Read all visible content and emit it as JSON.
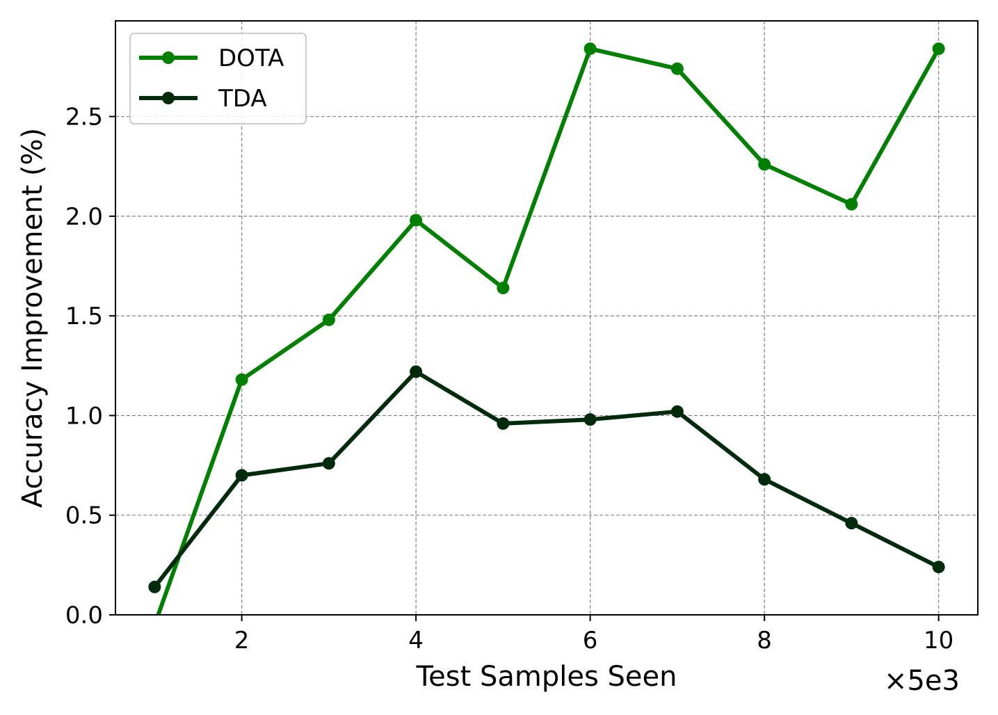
{
  "chart_data": {
    "type": "line",
    "title": "",
    "xlabel": "Test Samples Seen",
    "ylabel": "Accuracy Improvement (%)",
    "x_offset_text": "×5e3",
    "x": [
      1,
      2,
      3,
      4,
      5,
      6,
      7,
      8,
      9,
      10
    ],
    "xlim": [
      0.55,
      10.45
    ],
    "ylim": [
      0.0,
      2.98
    ],
    "xticks": [
      2,
      4,
      6,
      8,
      10
    ],
    "xtick_labels": [
      "2",
      "4",
      "6",
      "8",
      "10"
    ],
    "yticks": [
      0.0,
      0.5,
      1.0,
      1.5,
      2.0,
      2.5
    ],
    "ytick_labels": [
      "0.0",
      "0.5",
      "1.0",
      "1.5",
      "2.0",
      "2.5"
    ],
    "grid": true,
    "legend_position": "top-left",
    "series": [
      {
        "name": "DOTA",
        "color": "#008000",
        "values": [
          -0.05,
          1.18,
          1.48,
          1.98,
          1.64,
          2.84,
          2.74,
          2.26,
          2.06,
          2.84
        ]
      },
      {
        "name": "TDA",
        "color": "#002a0c",
        "values": [
          0.14,
          0.7,
          0.76,
          1.22,
          0.96,
          0.98,
          1.02,
          0.68,
          0.46,
          0.24
        ]
      }
    ]
  }
}
